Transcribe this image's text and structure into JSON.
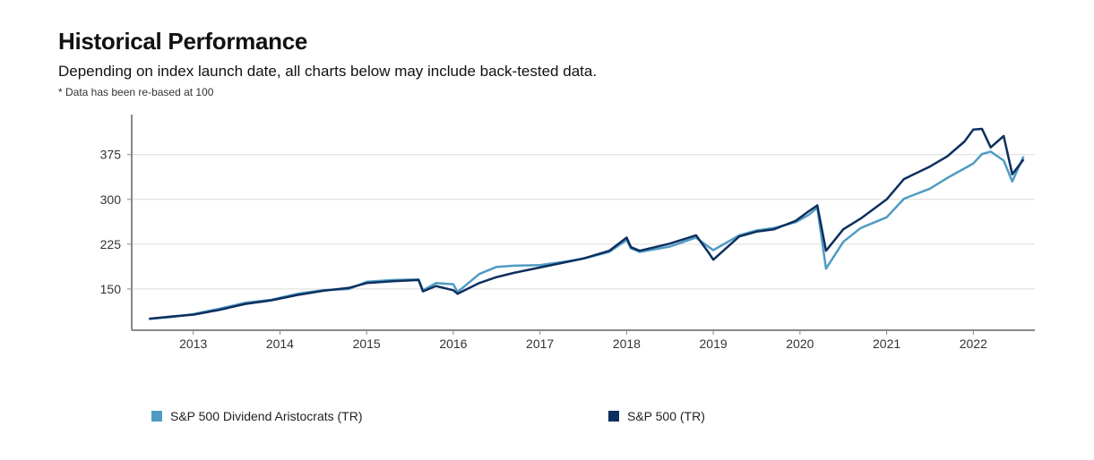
{
  "header": {
    "title": "Historical Performance",
    "subtitle": "Depending on index launch date, all charts below may include back-tested data.",
    "note": "* Data has been re-based at 100"
  },
  "chart_data": {
    "type": "line",
    "title": "Historical Performance",
    "xlabel": "",
    "ylabel": "",
    "xlim": [
      2012.29,
      2022.71
    ],
    "ylim": [
      81,
      442
    ],
    "grid": "horizontal",
    "legend_position": "bottom",
    "x_ticks": [
      "2013",
      "2014",
      "2015",
      "2016",
      "2017",
      "2018",
      "2019",
      "2020",
      "2021",
      "2022"
    ],
    "y_ticks": [
      "150",
      "225",
      "300",
      "375"
    ],
    "series": [
      {
        "name": "S&P 500 Dividend Aristocrats (TR)",
        "color": "#4f9bc4",
        "x": [
          2012.49,
          2012.75,
          2013.0,
          2013.3,
          2013.6,
          2013.9,
          2014.2,
          2014.5,
          2014.8,
          2015.0,
          2015.3,
          2015.6,
          2015.65,
          2015.8,
          2016.0,
          2016.05,
          2016.3,
          2016.5,
          2016.7,
          2017.0,
          2017.3,
          2017.5,
          2017.8,
          2018.0,
          2018.05,
          2018.15,
          2018.5,
          2018.8,
          2018.95,
          2019.0,
          2019.3,
          2019.5,
          2019.7,
          2019.95,
          2020.1,
          2020.2,
          2020.3,
          2020.5,
          2020.7,
          2021.0,
          2021.2,
          2021.5,
          2021.7,
          2021.9,
          2022.0,
          2022.1,
          2022.2,
          2022.35,
          2022.45,
          2022.58
        ],
        "values": [
          100,
          103,
          108,
          117,
          127,
          132,
          142,
          148,
          150,
          162,
          165,
          166,
          148,
          160,
          158,
          145,
          175,
          187,
          189,
          190,
          196,
          201,
          212,
          232,
          218,
          212,
          221,
          236,
          220,
          215,
          240,
          248,
          252,
          262,
          274,
          286,
          184,
          229,
          252,
          270,
          301,
          318,
          336,
          352,
          360,
          376,
          380,
          365,
          330,
          372
        ]
      },
      {
        "name": "S&P 500 (TR)",
        "color": "#0d2f5e",
        "x": [
          2012.49,
          2012.75,
          2013.0,
          2013.3,
          2013.6,
          2013.9,
          2014.2,
          2014.5,
          2014.8,
          2015.0,
          2015.3,
          2015.6,
          2015.65,
          2015.8,
          2016.0,
          2016.05,
          2016.3,
          2016.5,
          2016.7,
          2017.0,
          2017.3,
          2017.5,
          2017.8,
          2018.0,
          2018.05,
          2018.15,
          2018.5,
          2018.8,
          2018.95,
          2019.0,
          2019.3,
          2019.5,
          2019.7,
          2019.95,
          2020.1,
          2020.2,
          2020.3,
          2020.5,
          2020.7,
          2021.0,
          2021.2,
          2021.5,
          2021.7,
          2021.9,
          2022.0,
          2022.1,
          2022.2,
          2022.35,
          2022.45,
          2022.58
        ],
        "values": [
          100,
          104,
          107,
          115,
          125,
          131,
          140,
          147,
          152,
          160,
          163,
          165,
          146,
          155,
          148,
          142,
          160,
          170,
          177,
          186,
          195,
          201,
          214,
          236,
          220,
          214,
          226,
          240,
          210,
          199,
          238,
          246,
          250,
          264,
          280,
          290,
          214,
          250,
          268,
          300,
          334,
          355,
          372,
          397,
          417,
          418,
          387,
          406,
          342,
          367
        ]
      }
    ]
  }
}
